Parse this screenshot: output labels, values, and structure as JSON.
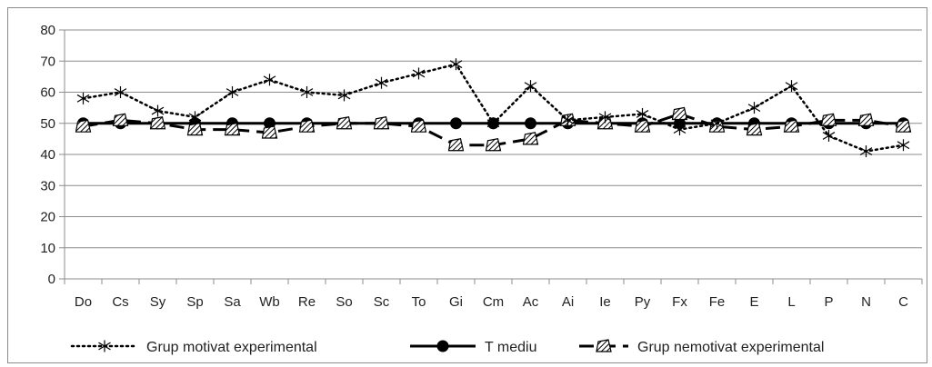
{
  "chart_data": {
    "type": "line",
    "title": "",
    "xlabel": "",
    "ylabel": "",
    "ylim": [
      0,
      80
    ],
    "yticks": [
      0,
      10,
      20,
      30,
      40,
      50,
      60,
      70,
      80
    ],
    "grid": true,
    "legend_position": "bottom",
    "categories": [
      "Do",
      "Cs",
      "Sy",
      "Sp",
      "Sa",
      "Wb",
      "Re",
      "So",
      "Sc",
      "To",
      "Gi",
      "Cm",
      "Ac",
      "Ai",
      "Ie",
      "Py",
      "Fx",
      "Fe",
      "E",
      "L",
      "P",
      "N",
      "C"
    ],
    "series": [
      {
        "name": "Grup motivat experimental",
        "style": "dotted",
        "marker": "asterisk",
        "color": "#000000",
        "values": [
          58,
          60,
          54,
          52,
          60,
          64,
          60,
          59,
          63,
          66,
          69,
          50,
          62,
          51,
          52,
          53,
          48,
          50,
          55,
          62,
          46,
          41,
          43
        ]
      },
      {
        "name": "T mediu",
        "style": "solid",
        "marker": "circle",
        "color": "#000000",
        "values": [
          50,
          50,
          50,
          50,
          50,
          50,
          50,
          50,
          50,
          50,
          50,
          50,
          50,
          50,
          50,
          50,
          50,
          50,
          50,
          50,
          50,
          50,
          50
        ]
      },
      {
        "name": "Grup nemotivat experimental",
        "style": "dashed",
        "marker": "hatched-triangle",
        "color": "#000000",
        "values": [
          49,
          51,
          50,
          48,
          48,
          47,
          49,
          50,
          50,
          49,
          43,
          43,
          45,
          51,
          50,
          49,
          53,
          49,
          48,
          49,
          51,
          51,
          49
        ]
      }
    ]
  }
}
